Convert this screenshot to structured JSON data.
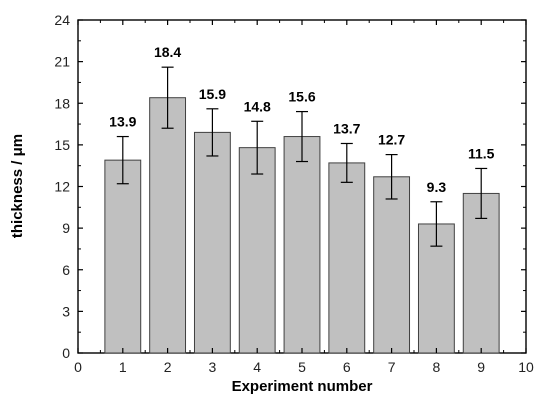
{
  "chart_data": {
    "type": "bar",
    "title": "",
    "xlabel": "Experiment number",
    "ylabel": "thickness / μm",
    "x": [
      1,
      2,
      3,
      4,
      5,
      6,
      7,
      8,
      9
    ],
    "values": [
      13.9,
      18.4,
      15.9,
      14.8,
      15.6,
      13.7,
      12.7,
      9.3,
      11.5
    ],
    "error_bars": [
      1.7,
      2.2,
      1.7,
      1.9,
      1.8,
      1.4,
      1.6,
      1.6,
      1.8
    ],
    "data_labels": [
      "13.9",
      "18.4",
      "15.9",
      "14.8",
      "15.6",
      "13.7",
      "12.7",
      "9.3",
      "11.5"
    ],
    "xlim": [
      0,
      10
    ],
    "ylim": [
      0,
      24
    ],
    "xticks": [
      "0",
      "1",
      "2",
      "3",
      "4",
      "5",
      "6",
      "7",
      "8",
      "9",
      "10"
    ],
    "yticks": [
      "0",
      "3",
      "6",
      "9",
      "12",
      "15",
      "18",
      "21",
      "24"
    ],
    "grid": false,
    "legend": "none",
    "colors": {
      "bar_fill": "#c0c0c0",
      "bar_stroke": "#404040",
      "axis": "#000000"
    }
  }
}
